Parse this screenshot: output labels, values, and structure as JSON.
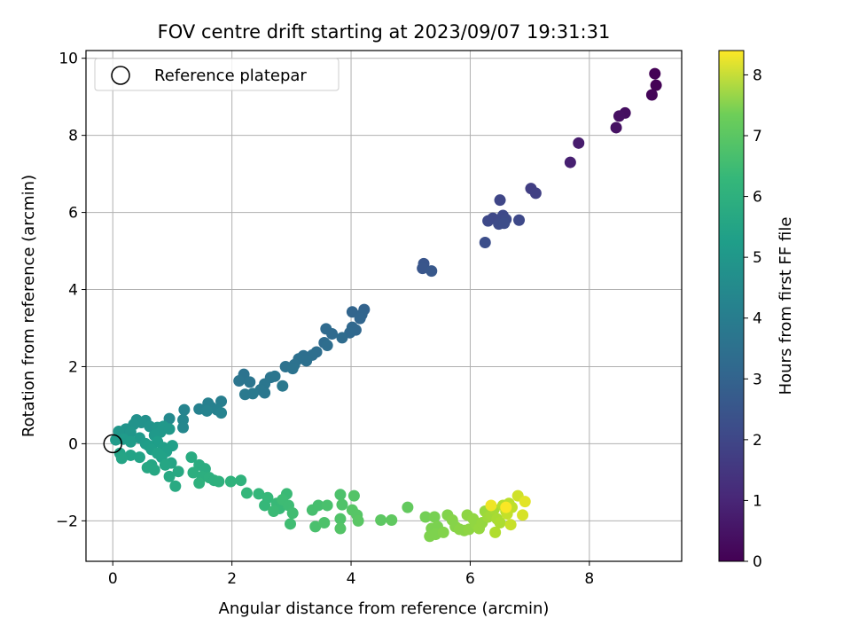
{
  "chart_data": {
    "type": "scatter",
    "title": "FOV centre drift starting at 2023/09/07 19:31:31",
    "xlabel": "Angular distance from reference (arcmin)",
    "ylabel": "Rotation from reference (arcmin)",
    "xlim": [
      -0.45,
      9.55
    ],
    "ylim": [
      -3.05,
      10.2
    ],
    "xticks": [
      0,
      2,
      4,
      6,
      8
    ],
    "yticks": [
      -2,
      0,
      2,
      4,
      6,
      8,
      10
    ],
    "xtick_labels": [
      "0",
      "2",
      "4",
      "6",
      "8"
    ],
    "ytick_labels": [
      "−2",
      "0",
      "2",
      "4",
      "6",
      "8",
      "10"
    ],
    "grid": true,
    "legend": {
      "placement": "top-left",
      "entries": [
        "Reference platepar"
      ]
    },
    "colorbar": {
      "label": "Hours from first FF file",
      "range": [
        0,
        8.4
      ],
      "colormap": "viridis",
      "ticks": [
        0,
        1,
        2,
        3,
        4,
        5,
        6,
        7,
        8
      ],
      "tick_labels": [
        "0",
        "1",
        "2",
        "3",
        "4",
        "5",
        "6",
        "7",
        "8"
      ]
    },
    "reference_point": {
      "x": 0,
      "y": 0,
      "label": "Reference platepar"
    },
    "points": [
      {
        "x": 9.1,
        "y": 9.6,
        "h": 0.02
      },
      {
        "x": 9.12,
        "y": 9.3,
        "h": 0.05
      },
      {
        "x": 9.05,
        "y": 9.05,
        "h": 0.1
      },
      {
        "x": 8.6,
        "y": 8.58,
        "h": 0.3
      },
      {
        "x": 8.5,
        "y": 8.5,
        "h": 0.35
      },
      {
        "x": 8.45,
        "y": 8.2,
        "h": 0.4
      },
      {
        "x": 7.82,
        "y": 7.8,
        "h": 0.65
      },
      {
        "x": 7.68,
        "y": 7.3,
        "h": 0.75
      },
      {
        "x": 7.02,
        "y": 6.62,
        "h": 1.55
      },
      {
        "x": 7.1,
        "y": 6.5,
        "h": 1.6
      },
      {
        "x": 6.5,
        "y": 6.32,
        "h": 1.75
      },
      {
        "x": 6.38,
        "y": 5.85,
        "h": 1.8
      },
      {
        "x": 6.3,
        "y": 5.78,
        "h": 1.85
      },
      {
        "x": 6.55,
        "y": 5.92,
        "h": 1.85
      },
      {
        "x": 6.6,
        "y": 5.82,
        "h": 1.9
      },
      {
        "x": 6.48,
        "y": 5.7,
        "h": 1.9
      },
      {
        "x": 6.57,
        "y": 5.72,
        "h": 1.95
      },
      {
        "x": 6.82,
        "y": 5.8,
        "h": 1.85
      },
      {
        "x": 6.25,
        "y": 5.22,
        "h": 2.0
      },
      {
        "x": 5.22,
        "y": 4.67,
        "h": 2.2
      },
      {
        "x": 5.2,
        "y": 4.55,
        "h": 2.25
      },
      {
        "x": 5.35,
        "y": 4.48,
        "h": 2.3
      },
      {
        "x": 4.22,
        "y": 3.48,
        "h": 2.65
      },
      {
        "x": 4.02,
        "y": 3.42,
        "h": 2.7
      },
      {
        "x": 4.18,
        "y": 3.35,
        "h": 2.7
      },
      {
        "x": 4.15,
        "y": 3.25,
        "h": 2.75
      },
      {
        "x": 4.02,
        "y": 3.02,
        "h": 2.8
      },
      {
        "x": 4.08,
        "y": 2.95,
        "h": 2.8
      },
      {
        "x": 3.98,
        "y": 2.88,
        "h": 2.85
      },
      {
        "x": 3.58,
        "y": 2.98,
        "h": 2.9
      },
      {
        "x": 3.68,
        "y": 2.85,
        "h": 2.9
      },
      {
        "x": 3.85,
        "y": 2.75,
        "h": 2.95
      },
      {
        "x": 3.55,
        "y": 2.62,
        "h": 2.95
      },
      {
        "x": 3.6,
        "y": 2.55,
        "h": 3.0
      },
      {
        "x": 3.42,
        "y": 2.38,
        "h": 3.0
      },
      {
        "x": 3.35,
        "y": 2.3,
        "h": 3.05
      },
      {
        "x": 3.2,
        "y": 2.28,
        "h": 3.05
      },
      {
        "x": 3.12,
        "y": 2.2,
        "h": 3.1
      },
      {
        "x": 3.25,
        "y": 2.15,
        "h": 3.1
      },
      {
        "x": 3.05,
        "y": 2.05,
        "h": 3.15
      },
      {
        "x": 2.9,
        "y": 2.0,
        "h": 3.15
      },
      {
        "x": 3.02,
        "y": 1.95,
        "h": 3.2
      },
      {
        "x": 2.2,
        "y": 1.8,
        "h": 3.2
      },
      {
        "x": 2.12,
        "y": 1.63,
        "h": 3.25
      },
      {
        "x": 2.3,
        "y": 1.6,
        "h": 3.25
      },
      {
        "x": 2.65,
        "y": 1.72,
        "h": 3.25
      },
      {
        "x": 2.72,
        "y": 1.75,
        "h": 3.3
      },
      {
        "x": 2.55,
        "y": 1.55,
        "h": 3.3
      },
      {
        "x": 2.48,
        "y": 1.4,
        "h": 3.35
      },
      {
        "x": 2.55,
        "y": 1.32,
        "h": 3.35
      },
      {
        "x": 2.35,
        "y": 1.3,
        "h": 3.4
      },
      {
        "x": 2.22,
        "y": 1.28,
        "h": 3.4
      },
      {
        "x": 2.85,
        "y": 1.5,
        "h": 3.4
      },
      {
        "x": 1.82,
        "y": 1.1,
        "h": 3.6
      },
      {
        "x": 1.6,
        "y": 1.05,
        "h": 3.65
      },
      {
        "x": 1.65,
        "y": 0.95,
        "h": 3.65
      },
      {
        "x": 1.75,
        "y": 0.88,
        "h": 3.7
      },
      {
        "x": 1.45,
        "y": 0.9,
        "h": 3.7
      },
      {
        "x": 1.58,
        "y": 0.85,
        "h": 3.75
      },
      {
        "x": 1.82,
        "y": 0.8,
        "h": 3.75
      },
      {
        "x": 1.2,
        "y": 0.88,
        "h": 3.8
      },
      {
        "x": 1.18,
        "y": 0.62,
        "h": 3.85
      },
      {
        "x": 1.18,
        "y": 0.42,
        "h": 3.9
      },
      {
        "x": 0.95,
        "y": 0.65,
        "h": 3.95
      },
      {
        "x": 0.4,
        "y": 0.62,
        "h": 4.2
      },
      {
        "x": 0.55,
        "y": 0.6,
        "h": 4.2
      },
      {
        "x": 0.48,
        "y": 0.55,
        "h": 4.25
      },
      {
        "x": 0.35,
        "y": 0.5,
        "h": 4.3
      },
      {
        "x": 0.62,
        "y": 0.45,
        "h": 4.3
      },
      {
        "x": 0.22,
        "y": 0.38,
        "h": 4.35
      },
      {
        "x": 0.1,
        "y": 0.32,
        "h": 4.4
      },
      {
        "x": 0.3,
        "y": 0.3,
        "h": 4.4
      },
      {
        "x": 0.75,
        "y": 0.42,
        "h": 4.4
      },
      {
        "x": 0.85,
        "y": 0.45,
        "h": 4.45
      },
      {
        "x": 0.8,
        "y": 0.3,
        "h": 4.45
      },
      {
        "x": 0.95,
        "y": 0.38,
        "h": 4.45
      },
      {
        "x": 0.7,
        "y": 0.22,
        "h": 4.5
      },
      {
        "x": 0.45,
        "y": 0.15,
        "h": 4.5
      },
      {
        "x": 0.18,
        "y": 0.12,
        "h": 4.55
      },
      {
        "x": 0.05,
        "y": 0.1,
        "h": 4.55
      },
      {
        "x": 0.3,
        "y": 0.05,
        "h": 4.6
      },
      {
        "x": 0.55,
        "y": 0.0,
        "h": 4.6
      },
      {
        "x": 0.75,
        "y": 0.05,
        "h": 4.65
      },
      {
        "x": 0.6,
        "y": -0.05,
        "h": 4.65
      },
      {
        "x": 0.65,
        "y": -0.15,
        "h": 4.7
      },
      {
        "x": 0.85,
        "y": -0.1,
        "h": 4.7
      },
      {
        "x": 1.0,
        "y": -0.05,
        "h": 4.75
      },
      {
        "x": 0.9,
        "y": -0.2,
        "h": 4.75
      },
      {
        "x": 0.75,
        "y": -0.25,
        "h": 4.8
      },
      {
        "x": 0.82,
        "y": -0.35,
        "h": 4.8
      },
      {
        "x": 0.3,
        "y": -0.3,
        "h": 4.85
      },
      {
        "x": 0.45,
        "y": -0.35,
        "h": 4.85
      },
      {
        "x": 0.12,
        "y": -0.25,
        "h": 4.85
      },
      {
        "x": 0.15,
        "y": -0.38,
        "h": 4.9
      },
      {
        "x": 0.98,
        "y": -0.5,
        "h": 4.9
      },
      {
        "x": 0.88,
        "y": -0.55,
        "h": 4.95
      },
      {
        "x": 0.65,
        "y": -0.55,
        "h": 4.95
      },
      {
        "x": 0.58,
        "y": -0.62,
        "h": 5.0
      },
      {
        "x": 0.7,
        "y": -0.68,
        "h": 5.0
      },
      {
        "x": 1.1,
        "y": -0.72,
        "h": 5.05
      },
      {
        "x": 0.95,
        "y": -0.85,
        "h": 5.05
      },
      {
        "x": 1.05,
        "y": -1.1,
        "h": 5.1
      },
      {
        "x": 1.32,
        "y": -0.35,
        "h": 5.15
      },
      {
        "x": 1.45,
        "y": -0.55,
        "h": 5.2
      },
      {
        "x": 1.55,
        "y": -0.65,
        "h": 5.2
      },
      {
        "x": 1.35,
        "y": -0.75,
        "h": 5.25
      },
      {
        "x": 1.5,
        "y": -0.85,
        "h": 5.25
      },
      {
        "x": 1.62,
        "y": -0.88,
        "h": 5.3
      },
      {
        "x": 1.7,
        "y": -0.95,
        "h": 5.3
      },
      {
        "x": 1.45,
        "y": -1.02,
        "h": 5.35
      },
      {
        "x": 1.78,
        "y": -0.98,
        "h": 5.35
      },
      {
        "x": 1.98,
        "y": -0.98,
        "h": 5.4
      },
      {
        "x": 2.15,
        "y": -0.95,
        "h": 5.4
      },
      {
        "x": 2.25,
        "y": -1.28,
        "h": 5.55
      },
      {
        "x": 2.45,
        "y": -1.3,
        "h": 5.55
      },
      {
        "x": 2.6,
        "y": -1.4,
        "h": 5.6
      },
      {
        "x": 2.55,
        "y": -1.6,
        "h": 5.6
      },
      {
        "x": 2.75,
        "y": -1.55,
        "h": 5.65
      },
      {
        "x": 2.8,
        "y": -1.68,
        "h": 5.65
      },
      {
        "x": 2.7,
        "y": -1.75,
        "h": 5.7
      },
      {
        "x": 2.92,
        "y": -1.3,
        "h": 5.7
      },
      {
        "x": 2.85,
        "y": -1.45,
        "h": 5.75
      },
      {
        "x": 2.95,
        "y": -1.6,
        "h": 5.75
      },
      {
        "x": 3.02,
        "y": -1.8,
        "h": 5.8
      },
      {
        "x": 2.98,
        "y": -2.08,
        "h": 5.8
      },
      {
        "x": 3.35,
        "y": -1.72,
        "h": 5.9
      },
      {
        "x": 3.45,
        "y": -1.6,
        "h": 5.9
      },
      {
        "x": 3.6,
        "y": -1.6,
        "h": 5.95
      },
      {
        "x": 3.4,
        "y": -2.15,
        "h": 5.95
      },
      {
        "x": 3.55,
        "y": -2.05,
        "h": 6.0
      },
      {
        "x": 3.82,
        "y": -1.32,
        "h": 6.0
      },
      {
        "x": 3.85,
        "y": -1.58,
        "h": 6.05
      },
      {
        "x": 3.82,
        "y": -1.95,
        "h": 6.05
      },
      {
        "x": 3.82,
        "y": -2.2,
        "h": 6.1
      },
      {
        "x": 4.05,
        "y": -1.35,
        "h": 6.1
      },
      {
        "x": 4.02,
        "y": -1.72,
        "h": 6.15
      },
      {
        "x": 4.1,
        "y": -1.85,
        "h": 6.15
      },
      {
        "x": 4.12,
        "y": -2.0,
        "h": 6.2
      },
      {
        "x": 4.5,
        "y": -1.98,
        "h": 6.25
      },
      {
        "x": 4.68,
        "y": -1.98,
        "h": 6.3
      },
      {
        "x": 4.95,
        "y": -1.65,
        "h": 6.35
      },
      {
        "x": 5.25,
        "y": -1.9,
        "h": 6.6
      },
      {
        "x": 5.4,
        "y": -1.9,
        "h": 6.65
      },
      {
        "x": 5.35,
        "y": -2.2,
        "h": 6.7
      },
      {
        "x": 5.45,
        "y": -2.15,
        "h": 6.7
      },
      {
        "x": 5.32,
        "y": -2.4,
        "h": 6.75
      },
      {
        "x": 5.42,
        "y": -2.35,
        "h": 6.75
      },
      {
        "x": 5.55,
        "y": -2.3,
        "h": 6.8
      },
      {
        "x": 5.62,
        "y": -1.85,
        "h": 6.8
      },
      {
        "x": 5.7,
        "y": -1.98,
        "h": 6.85
      },
      {
        "x": 5.75,
        "y": -2.15,
        "h": 6.85
      },
      {
        "x": 5.82,
        "y": -2.22,
        "h": 6.9
      },
      {
        "x": 5.9,
        "y": -2.25,
        "h": 6.9
      },
      {
        "x": 5.98,
        "y": -2.22,
        "h": 6.95
      },
      {
        "x": 5.95,
        "y": -1.85,
        "h": 6.95
      },
      {
        "x": 6.05,
        "y": -1.95,
        "h": 7.0
      },
      {
        "x": 6.1,
        "y": -2.1,
        "h": 7.0
      },
      {
        "x": 6.15,
        "y": -2.2,
        "h": 7.05
      },
      {
        "x": 6.2,
        "y": -2.05,
        "h": 7.05
      },
      {
        "x": 6.25,
        "y": -1.75,
        "h": 7.1
      },
      {
        "x": 6.3,
        "y": -1.9,
        "h": 7.15
      },
      {
        "x": 6.35,
        "y": -1.85,
        "h": 7.2
      },
      {
        "x": 6.4,
        "y": -1.7,
        "h": 7.25
      },
      {
        "x": 6.45,
        "y": -1.95,
        "h": 7.3
      },
      {
        "x": 6.5,
        "y": -2.05,
        "h": 7.35
      },
      {
        "x": 6.42,
        "y": -2.3,
        "h": 7.4
      },
      {
        "x": 6.55,
        "y": -1.6,
        "h": 7.45
      },
      {
        "x": 6.6,
        "y": -1.75,
        "h": 7.5
      },
      {
        "x": 6.65,
        "y": -1.55,
        "h": 7.55
      },
      {
        "x": 6.7,
        "y": -1.65,
        "h": 7.6
      },
      {
        "x": 6.62,
        "y": -1.82,
        "h": 7.65
      },
      {
        "x": 6.68,
        "y": -2.1,
        "h": 7.7
      },
      {
        "x": 6.8,
        "y": -1.35,
        "h": 7.8
      },
      {
        "x": 6.88,
        "y": -1.85,
        "h": 7.9
      },
      {
        "x": 6.92,
        "y": -1.5,
        "h": 8.05
      },
      {
        "x": 6.35,
        "y": -1.6,
        "h": 8.2
      },
      {
        "x": 6.6,
        "y": -1.65,
        "h": 8.35
      }
    ]
  }
}
